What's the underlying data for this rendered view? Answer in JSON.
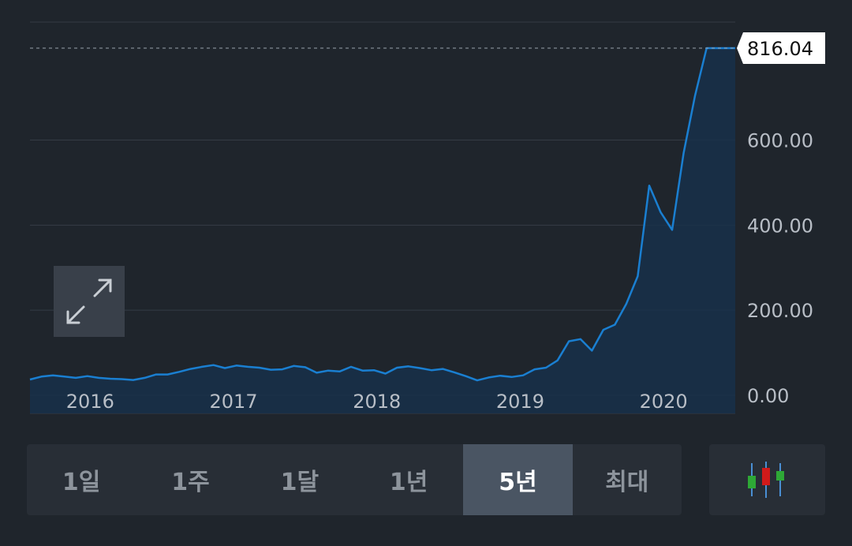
{
  "chart_data": {
    "type": "area",
    "title": "",
    "xlabel": "",
    "ylabel": "",
    "ylim": [
      0,
      940
    ],
    "y_ticks": [
      {
        "value": 0,
        "label": "0.00"
      },
      {
        "value": 200,
        "label": "200.00"
      },
      {
        "value": 400,
        "label": "400.00"
      },
      {
        "value": 600,
        "label": "600.00"
      }
    ],
    "x_ticks": [
      {
        "x": 2016,
        "label": "2016"
      },
      {
        "x": 2017,
        "label": "2017"
      },
      {
        "x": 2018,
        "label": "2018"
      },
      {
        "x": 2019,
        "label": "2019"
      },
      {
        "x": 2020,
        "label": "2020"
      }
    ],
    "xlim": [
      2015.58,
      2020.5
    ],
    "current_price": 816.04,
    "current_price_label": "816.04",
    "line_color": "#1a7fd1",
    "grid": true,
    "series": [
      {
        "x": [
          2015.58,
          2015.66,
          2015.74,
          2015.82,
          2015.9,
          2015.98,
          2016.06,
          2016.14,
          2016.22,
          2016.3,
          2016.38,
          2016.46,
          2016.54,
          2016.62,
          2016.7,
          2016.78,
          2016.86,
          2016.94,
          2017.02,
          2017.1,
          2017.18,
          2017.26,
          2017.34,
          2017.42,
          2017.5,
          2017.58,
          2017.66,
          2017.74,
          2017.82,
          2017.9,
          2017.98,
          2018.06,
          2018.14,
          2018.22,
          2018.3,
          2018.38,
          2018.46,
          2018.54,
          2018.62,
          2018.7,
          2018.78,
          2018.86,
          2018.94,
          2019.02,
          2019.1,
          2019.18,
          2019.26,
          2019.34,
          2019.42,
          2019.5,
          2019.58,
          2019.66,
          2019.74,
          2019.82,
          2019.9,
          2019.98,
          2020.06,
          2020.14,
          2020.22,
          2020.3,
          2020.38,
          2020.46,
          2020.5
        ],
        "values": [
          37,
          44,
          47,
          44,
          41,
          45,
          41,
          39,
          38,
          36,
          41,
          49,
          49,
          55,
          62,
          67,
          71,
          64,
          70,
          67,
          65,
          60,
          61,
          69,
          66,
          53,
          58,
          56,
          67,
          58,
          59,
          51,
          65,
          68,
          64,
          59,
          62,
          54,
          45,
          35,
          42,
          46,
          43,
          47,
          61,
          65,
          82,
          127,
          132,
          105,
          154,
          166,
          215,
          280,
          493,
          430,
          389,
          570,
          705,
          816,
          816,
          816,
          816
        ]
      }
    ]
  },
  "expand_icon": "expand-arrows-icon",
  "range_buttons": [
    {
      "label": "1일"
    },
    {
      "label": "1주"
    },
    {
      "label": "1달"
    },
    {
      "label": "1년"
    },
    {
      "label": "5년"
    },
    {
      "label": "최대"
    }
  ],
  "active_range": "5년",
  "chart_type_icon": "candlestick-icon",
  "candle_colors": {
    "up": "#2ea836",
    "down": "#d11a1a",
    "wick": "#4a8fd4"
  }
}
